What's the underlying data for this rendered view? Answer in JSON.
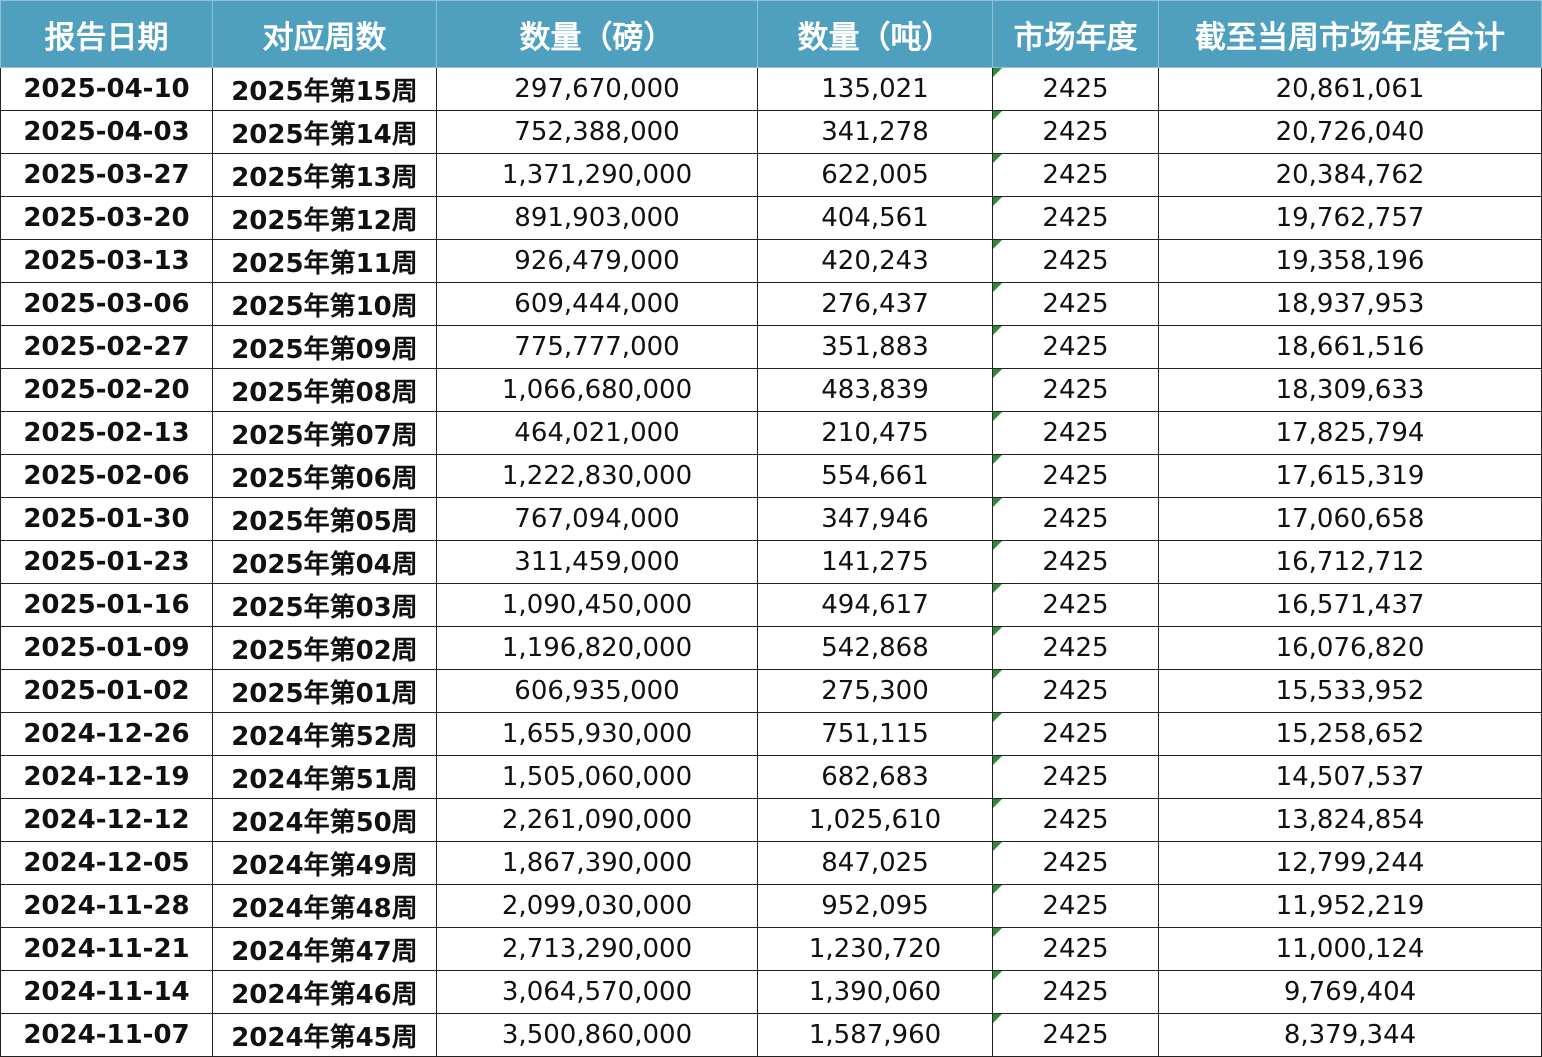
{
  "columns": [
    "报告日期",
    "对应周数",
    "数量（磅）",
    "数量（吨）",
    "市场年度",
    "截至当周市场年度合计"
  ],
  "rows": [
    [
      "2025-04-10",
      "2025年第15周",
      "297,670,000",
      "135,021",
      "2425",
      "20,861,061"
    ],
    [
      "2025-04-03",
      "2025年第14周",
      "752,388,000",
      "341,278",
      "2425",
      "20,726,040"
    ],
    [
      "2025-03-27",
      "2025年第13周",
      "1,371,290,000",
      "622,005",
      "2425",
      "20,384,762"
    ],
    [
      "2025-03-20",
      "2025年第12周",
      "891,903,000",
      "404,561",
      "2425",
      "19,762,757"
    ],
    [
      "2025-03-13",
      "2025年第11周",
      "926,479,000",
      "420,243",
      "2425",
      "19,358,196"
    ],
    [
      "2025-03-06",
      "2025年第10周",
      "609,444,000",
      "276,437",
      "2425",
      "18,937,953"
    ],
    [
      "2025-02-27",
      "2025年第09周",
      "775,777,000",
      "351,883",
      "2425",
      "18,661,516"
    ],
    [
      "2025-02-20",
      "2025年第08周",
      "1,066,680,000",
      "483,839",
      "2425",
      "18,309,633"
    ],
    [
      "2025-02-13",
      "2025年第07周",
      "464,021,000",
      "210,475",
      "2425",
      "17,825,794"
    ],
    [
      "2025-02-06",
      "2025年第06周",
      "1,222,830,000",
      "554,661",
      "2425",
      "17,615,319"
    ],
    [
      "2025-01-30",
      "2025年第05周",
      "767,094,000",
      "347,946",
      "2425",
      "17,060,658"
    ],
    [
      "2025-01-23",
      "2025年第04周",
      "311,459,000",
      "141,275",
      "2425",
      "16,712,712"
    ],
    [
      "2025-01-16",
      "2025年第03周",
      "1,090,450,000",
      "494,617",
      "2425",
      "16,571,437"
    ],
    [
      "2025-01-09",
      "2025年第02周",
      "1,196,820,000",
      "542,868",
      "2425",
      "16,076,820"
    ],
    [
      "2025-01-02",
      "2025年第01周",
      "606,935,000",
      "275,300",
      "2425",
      "15,533,952"
    ],
    [
      "2024-12-26",
      "2024年第52周",
      "1,655,930,000",
      "751,115",
      "2425",
      "15,258,652"
    ],
    [
      "2024-12-19",
      "2024年第51周",
      "1,505,060,000",
      "682,683",
      "2425",
      "14,507,537"
    ],
    [
      "2024-12-12",
      "2024年第50周",
      "2,261,090,000",
      "1,025,610",
      "2425",
      "13,824,854"
    ],
    [
      "2024-12-05",
      "2024年第49周",
      "1,867,390,000",
      "847,025",
      "2425",
      "12,799,244"
    ],
    [
      "2024-11-28",
      "2024年第48周",
      "2,099,030,000",
      "952,095",
      "2425",
      "11,952,219"
    ],
    [
      "2024-11-21",
      "2024年第47周",
      "2,713,290,000",
      "1,230,720",
      "2425",
      "11,000,124"
    ],
    [
      "2024-11-14",
      "2024年第46周",
      "3,064,570,000",
      "1,390,060",
      "2425",
      "9,769,404"
    ],
    [
      "2024-11-07",
      "2024年第45周",
      "3,500,860,000",
      "1,587,960",
      "2425",
      "8,379,344"
    ]
  ],
  "colors": {
    "header_bg": "#4f9fbf",
    "header_text": "#ffffff",
    "grid": "#222222",
    "text_as_number_flag": "#2e8b3a"
  },
  "icons": {
    "season_cell_marker": "number-stored-as-text-flag"
  }
}
